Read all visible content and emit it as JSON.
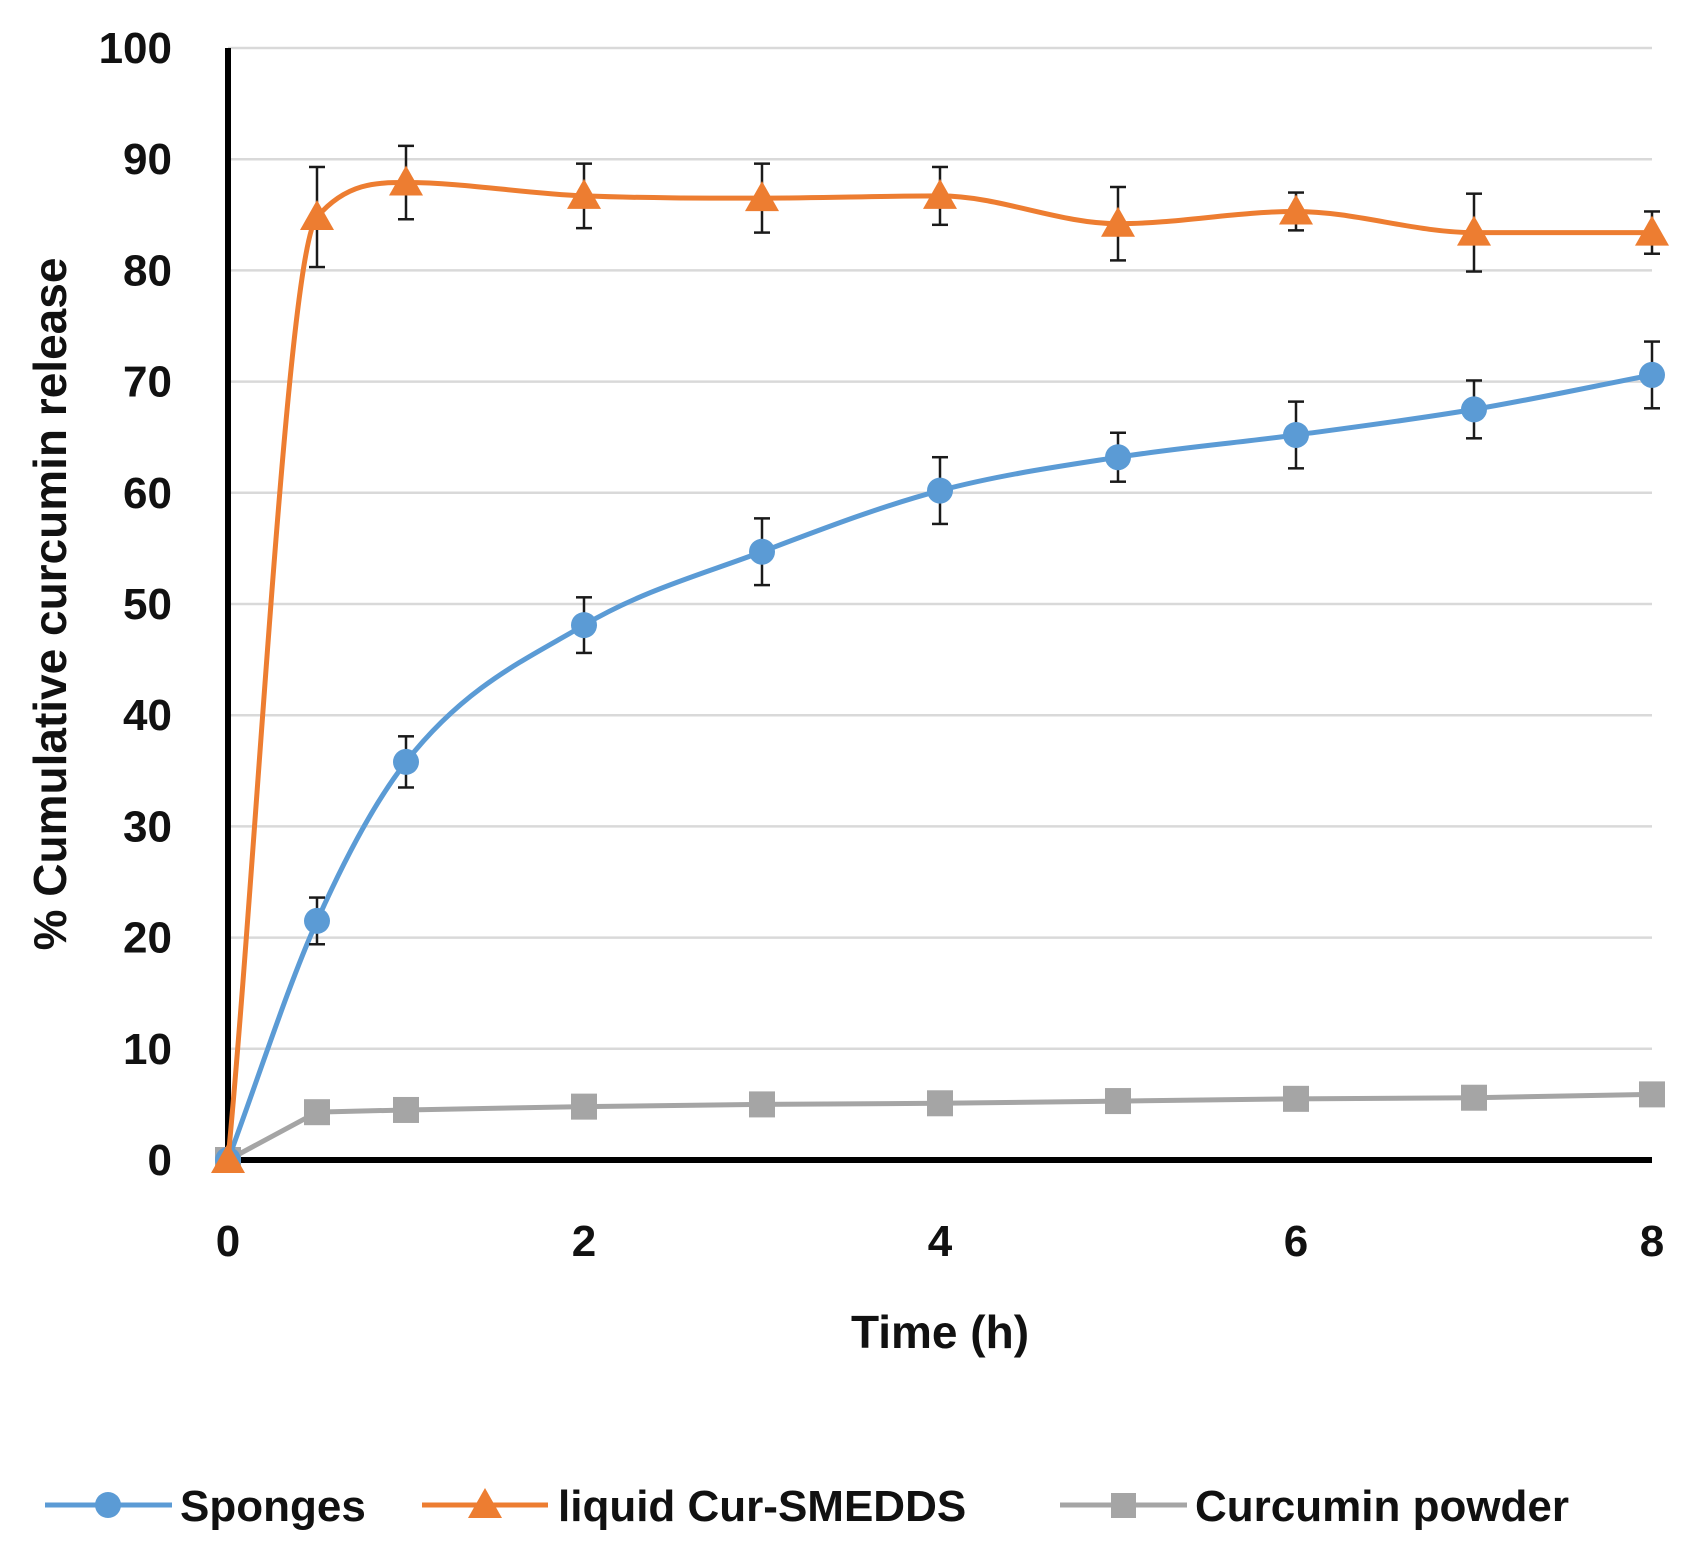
{
  "chart_data": {
    "type": "line",
    "title": "",
    "xlabel": "Time (h)",
    "ylabel": "% Cumulative curcumin release",
    "xlim": [
      0,
      8
    ],
    "ylim": [
      0,
      100
    ],
    "xticks": [
      0,
      2,
      4,
      6,
      8
    ],
    "yticks": [
      0,
      10,
      20,
      30,
      40,
      50,
      60,
      70,
      80,
      90,
      100
    ],
    "grid": "horizontal",
    "legend_position": "bottom",
    "series": [
      {
        "name": "Sponges",
        "color": "#5B9BD5",
        "marker": "circle",
        "smooth": true,
        "x": [
          0,
          0.5,
          1,
          2,
          3,
          4,
          5,
          6,
          7,
          8
        ],
        "values": [
          0,
          21.5,
          35.8,
          48.1,
          54.7,
          60.2,
          63.2,
          65.2,
          67.5,
          70.6
        ],
        "errors": [
          0,
          2.1,
          2.3,
          2.5,
          3.0,
          3.0,
          2.2,
          3.0,
          2.6,
          3.0
        ]
      },
      {
        "name": "liquid Cur-SMEDDS",
        "color": "#ED7D31",
        "marker": "triangle",
        "smooth": true,
        "x": [
          0,
          0.5,
          1,
          2,
          3,
          4,
          5,
          6,
          7,
          8
        ],
        "values": [
          0,
          84.8,
          87.9,
          86.7,
          86.5,
          86.7,
          84.2,
          85.3,
          83.4,
          83.4
        ],
        "errors": [
          0,
          4.5,
          3.3,
          2.9,
          3.1,
          2.6,
          3.3,
          1.7,
          3.5,
          1.9
        ]
      },
      {
        "name": "Curcumin powder",
        "color": "#A5A5A5",
        "marker": "square",
        "smooth": false,
        "x": [
          0,
          0.5,
          1,
          2,
          3,
          4,
          5,
          6,
          7,
          8
        ],
        "values": [
          0,
          4.3,
          4.5,
          4.8,
          5.0,
          5.1,
          5.3,
          5.5,
          5.6,
          5.9
        ],
        "errors": [
          0,
          0,
          0,
          0,
          0,
          0,
          0,
          0,
          0,
          0
        ]
      }
    ]
  }
}
